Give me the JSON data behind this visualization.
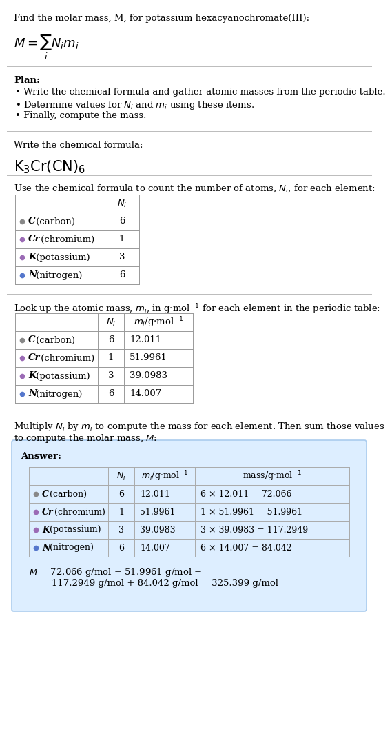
{
  "title_line": "Find the molar mass, M, for potassium hexacyanochromate(III):",
  "formula_latex": "$M = \\sum_i N_i m_i$",
  "plan_header": "Plan:",
  "plan_bullets": [
    "Write the chemical formula and gather atomic masses from the periodic table.",
    "Determine values for $N_i$ and $m_i$ using these items.",
    "Finally, compute the mass."
  ],
  "formula_header": "Write the chemical formula:",
  "chemical_formula": "$\\mathrm{K_3Cr(CN)_6}$",
  "count_header": "Use the chemical formula to count the number of atoms, $N_i$, for each element:",
  "count_col_header": "$N_i$",
  "elements": [
    "C (carbon)",
    "Cr (chromium)",
    "K (potassium)",
    "N (nitrogen)"
  ],
  "elem_bold": [
    "C",
    "Cr",
    "K",
    "N"
  ],
  "elem_rest": [
    " (carbon)",
    " (chromium)",
    " (potassium)",
    " (nitrogen)"
  ],
  "dot_colors": [
    "#888888",
    "#9B6BB5",
    "#9B6BB5",
    "#5577CC"
  ],
  "Ni_values": [
    "6",
    "1",
    "3",
    "6"
  ],
  "mi_values": [
    "12.011",
    "51.9961",
    "39.0983",
    "14.007"
  ],
  "mi_header": "$m_i$/g·mol$^{-1}$",
  "mass_values": [
    "6 × 12.011 = 72.066",
    "1 × 51.9961 = 51.9961",
    "3 × 39.0983 = 117.2949",
    "6 × 14.007 = 84.042"
  ],
  "mass_header": "mass/g·mol$^{-1}$",
  "lookup_header": "Look up the atomic mass, $m_i$, in g·mol$^{-1}$ for each element in the periodic table:",
  "multiply_header_l1": "Multiply $N_i$ by $m_i$ to compute the mass for each element. Then sum those values",
  "multiply_header_l2": "to compute the molar mass, $M$:",
  "answer_label": "Answer:",
  "final_eq_l1": "$M$ = 72.066 g/mol + 51.9961 g/mol +",
  "final_eq_l2": "    117.2949 g/mol + 84.042 g/mol = 325.399 g/mol",
  "answer_bg_color": "#ddeeff",
  "answer_border_color": "#aaccee",
  "bg_color": "#ffffff",
  "text_color": "#000000",
  "divider_color": "#bbbbbb",
  "table_border_color": "#999999"
}
